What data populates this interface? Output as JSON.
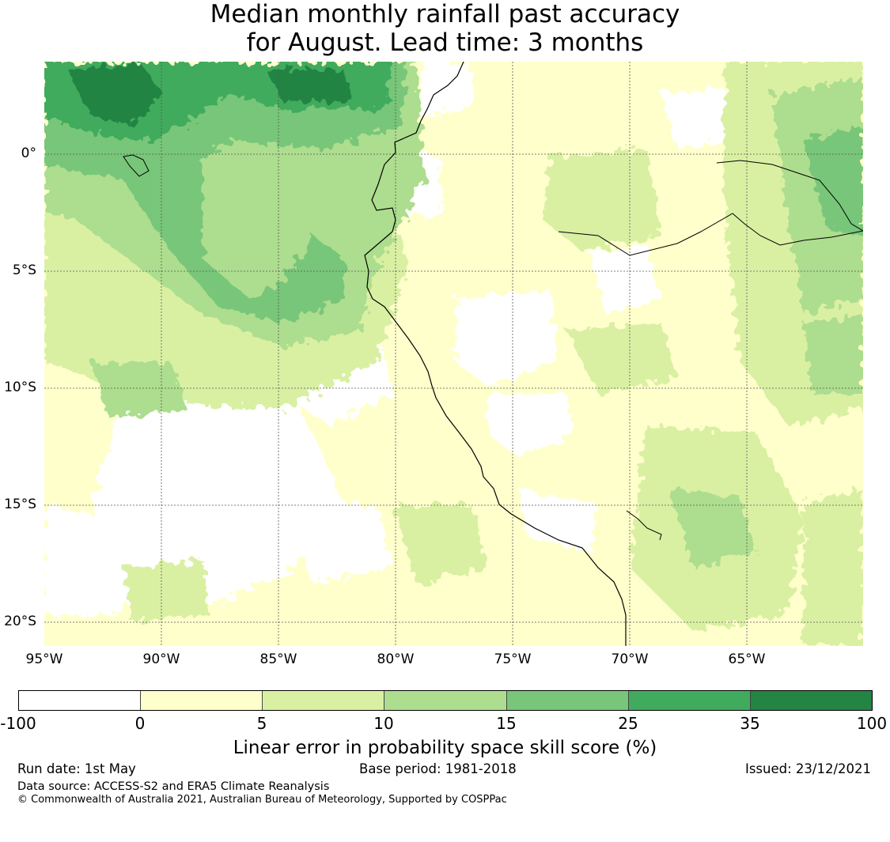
{
  "title_line1": "Median monthly rainfall past accuracy",
  "title_line2": "for August. Lead time: 3 months",
  "map": {
    "lat_labels": [
      "0°",
      "5°S",
      "10°S",
      "15°S",
      "20°S"
    ],
    "lon_labels": [
      "95°W",
      "90°W",
      "85°W",
      "80°W",
      "75°W",
      "70°W",
      "65°W"
    ]
  },
  "colorbar": {
    "title": "Linear error in probability space skill score (%)",
    "tick_labels": [
      "-100",
      "0",
      "5",
      "10",
      "15",
      "25",
      "35",
      "100"
    ],
    "colors": [
      "#ffffff",
      "#ffffcc",
      "#d9f0a3",
      "#addd8e",
      "#78c679",
      "#41ab5d",
      "#238443"
    ]
  },
  "footer": {
    "run_date": "Run date: 1st May",
    "base_period": "Base period: 1981-2018",
    "issued": "Issued: 23/12/2021",
    "data_source": "Data source: ACCESS-S2 and ERA5 Climate Reanalysis",
    "copyright": "© Commonwealth of Australia 2021, Australian Bureau of Meteorology, Supported by COSPPac"
  }
}
